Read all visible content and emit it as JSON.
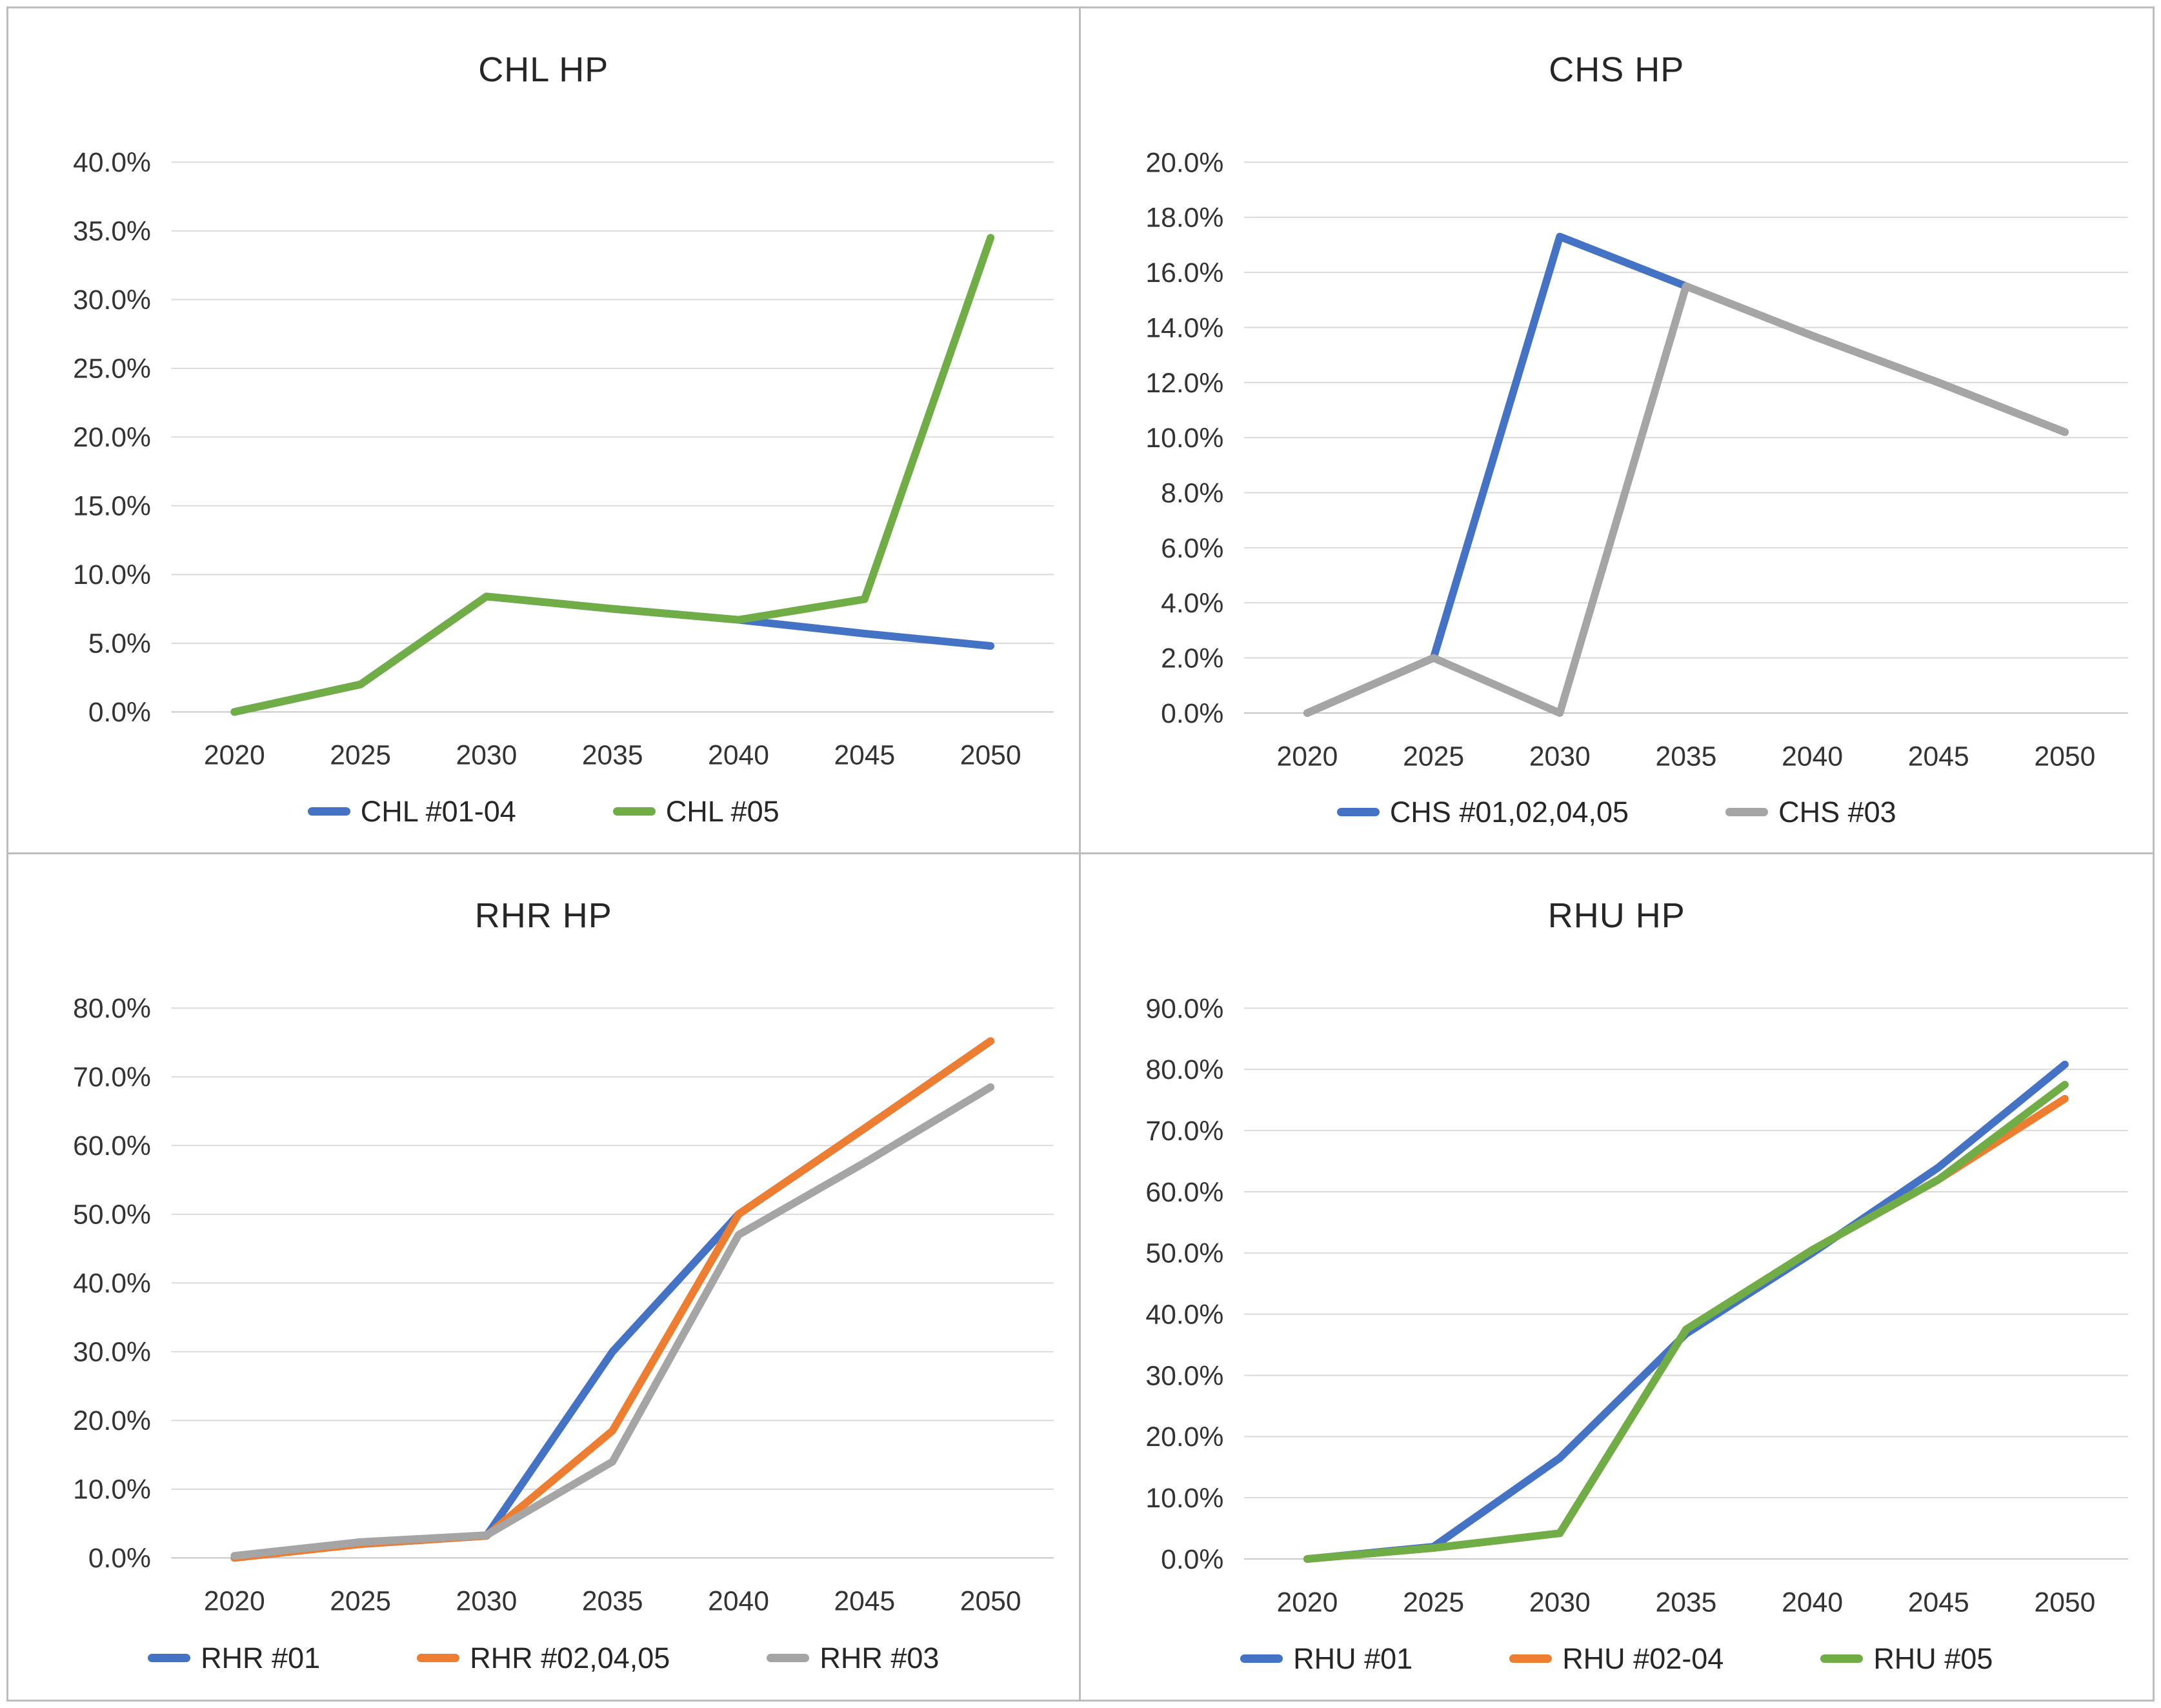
{
  "chart_data": [
    {
      "type": "line",
      "title": "CHL HP",
      "categories": [
        "2020",
        "2025",
        "2030",
        "2035",
        "2040",
        "2045",
        "2050"
      ],
      "xlabel": "",
      "ylabel": "",
      "ylim": [
        0,
        40
      ],
      "ystep": 5,
      "tick_format": "percent_one_decimal",
      "grid": true,
      "legend_position": "bottom",
      "gridline_color": "#d9d9d9",
      "series": [
        {
          "name": "CHL #01-04",
          "color": "#4472c4",
          "values": [
            0.0,
            2.0,
            8.4,
            7.5,
            6.7,
            5.7,
            4.8
          ]
        },
        {
          "name": "CHL #05",
          "color": "#70ad47",
          "values": [
            0.0,
            2.0,
            8.4,
            7.5,
            6.7,
            8.2,
            34.5
          ]
        }
      ]
    },
    {
      "type": "line",
      "title": "CHS HP",
      "categories": [
        "2020",
        "2025",
        "2030",
        "2035",
        "2040",
        "2045",
        "2050"
      ],
      "xlabel": "",
      "ylabel": "",
      "ylim": [
        0,
        20
      ],
      "ystep": 2,
      "tick_format": "percent_one_decimal",
      "grid": true,
      "legend_position": "bottom",
      "gridline_color": "#d9d9d9",
      "series": [
        {
          "name": "CHS #01,02,04,05",
          "color": "#4472c4",
          "values": [
            0.0,
            2.0,
            17.3,
            15.5,
            13.7,
            12.0,
            10.2
          ]
        },
        {
          "name": "CHS #03",
          "color": "#a5a5a5",
          "values": [
            0.0,
            2.0,
            0.0,
            15.5,
            13.7,
            12.0,
            10.2
          ]
        }
      ]
    },
    {
      "type": "line",
      "title": "RHR HP",
      "categories": [
        "2020",
        "2025",
        "2030",
        "2035",
        "2040",
        "2045",
        "2050"
      ],
      "xlabel": "",
      "ylabel": "",
      "ylim": [
        0,
        80
      ],
      "ystep": 10,
      "tick_format": "percent_one_decimal",
      "grid": true,
      "legend_position": "bottom",
      "gridline_color": "#d9d9d9",
      "series": [
        {
          "name": "RHR #01",
          "color": "#4472c4",
          "values": [
            0.0,
            2.0,
            3.2,
            30.0,
            50.0,
            62.5,
            75.2
          ]
        },
        {
          "name": "RHR #02,04,05",
          "color": "#ed7d31",
          "values": [
            0.0,
            2.0,
            3.2,
            18.5,
            50.0,
            62.5,
            75.2
          ]
        },
        {
          "name": "RHR #03",
          "color": "#a5a5a5",
          "values": [
            0.3,
            2.3,
            3.3,
            14.0,
            47.0,
            57.5,
            68.5
          ]
        }
      ]
    },
    {
      "type": "line",
      "title": "RHU HP",
      "categories": [
        "2020",
        "2025",
        "2030",
        "2035",
        "2040",
        "2045",
        "2050"
      ],
      "xlabel": "",
      "ylabel": "",
      "ylim": [
        0,
        90
      ],
      "ystep": 10,
      "tick_format": "percent_one_decimal",
      "grid": true,
      "legend_position": "bottom",
      "gridline_color": "#d9d9d9",
      "series": [
        {
          "name": "RHU #01",
          "color": "#4472c4",
          "values": [
            0.0,
            2.0,
            16.5,
            36.8,
            50.0,
            64.0,
            80.8
          ]
        },
        {
          "name": "RHU #02-04",
          "color": "#ed7d31",
          "values": [
            0.0,
            1.8,
            4.2,
            37.5,
            50.5,
            62.0,
            75.2
          ]
        },
        {
          "name": "RHU #05",
          "color": "#70ad47",
          "values": [
            0.0,
            1.8,
            4.2,
            37.5,
            50.5,
            62.0,
            77.5
          ]
        }
      ]
    }
  ]
}
